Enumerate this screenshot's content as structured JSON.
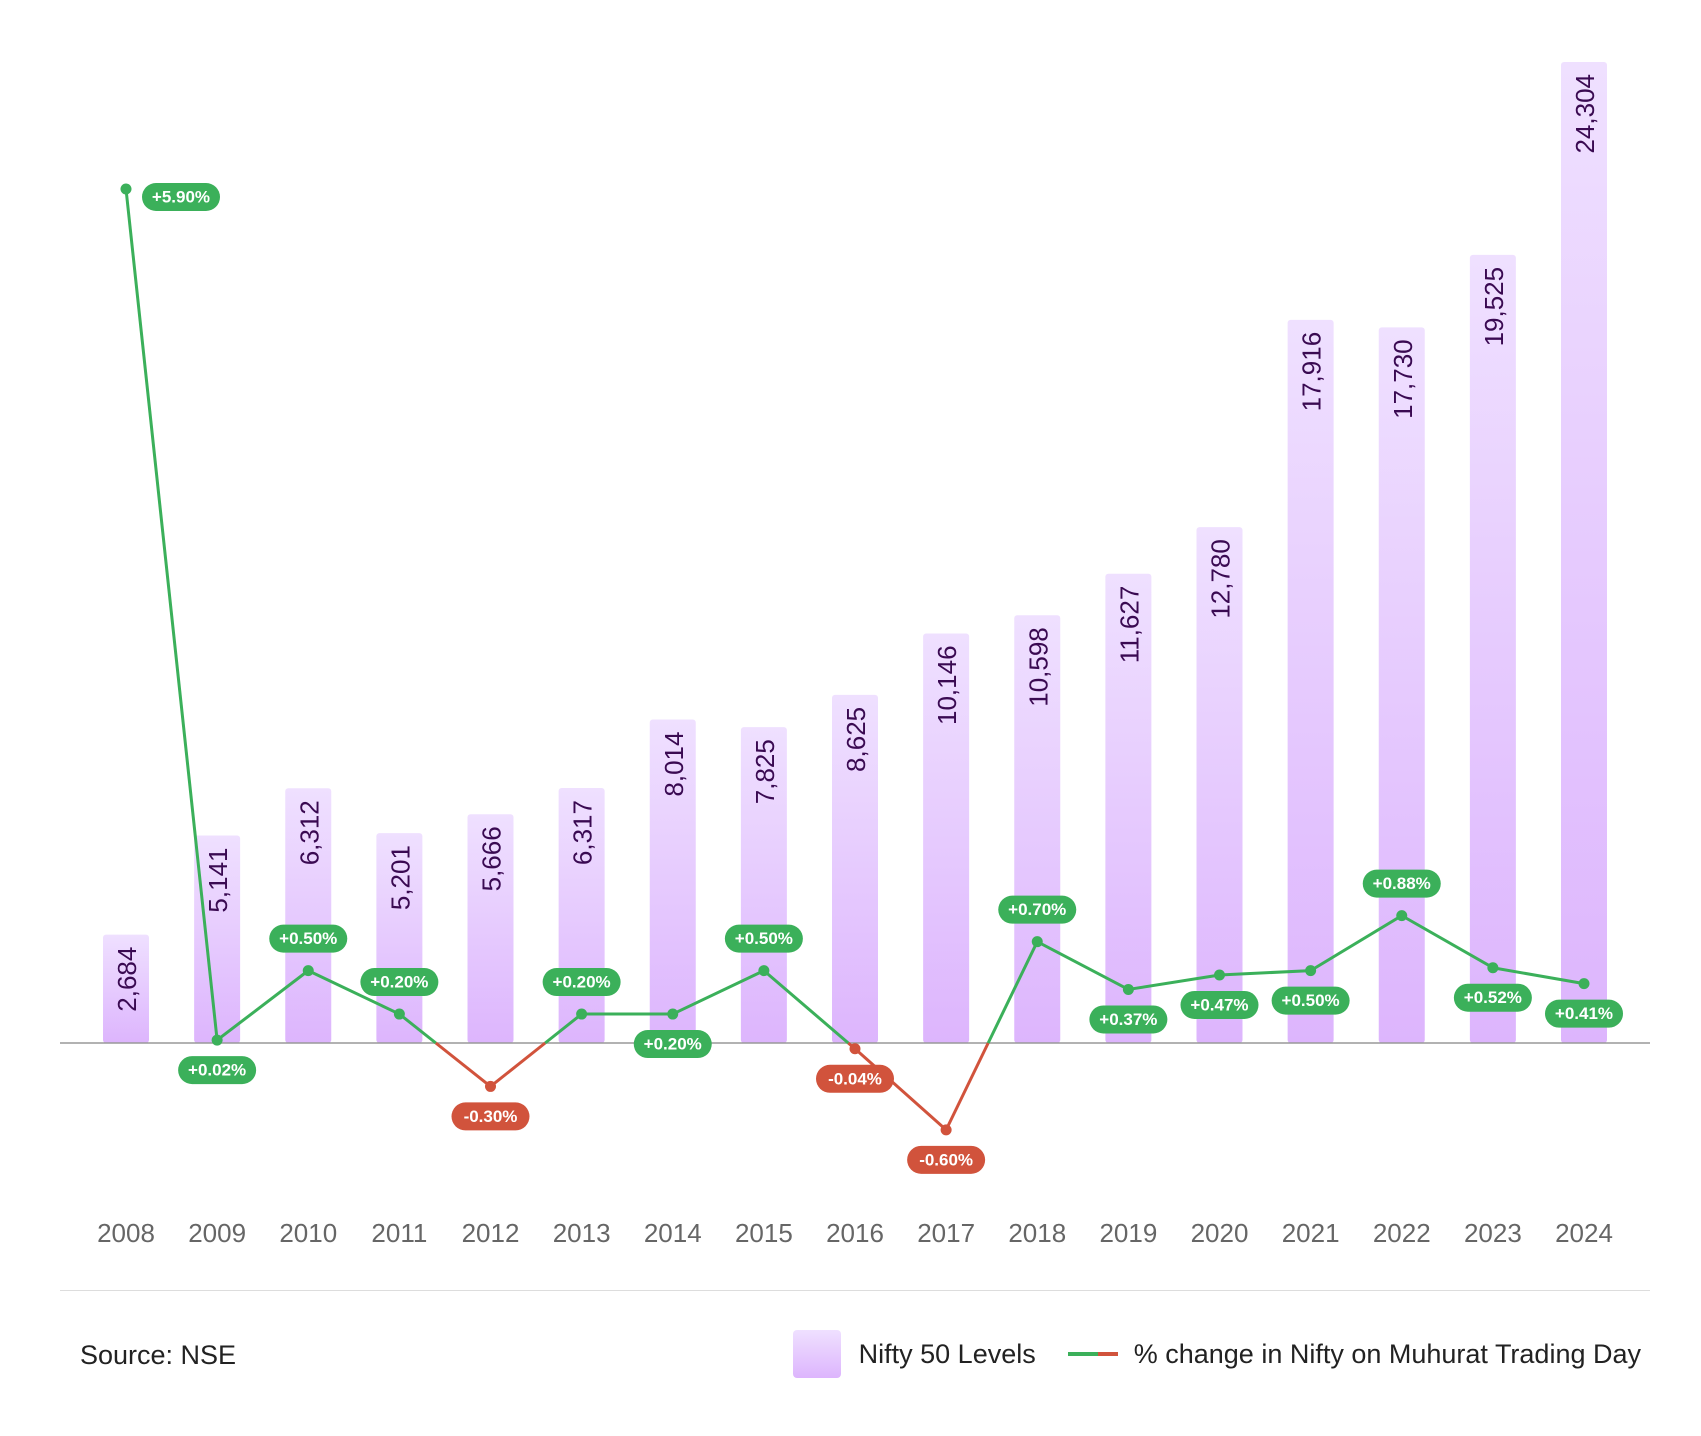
{
  "chart_data": {
    "type": "bar+line",
    "categories": [
      "2008",
      "2009",
      "2010",
      "2011",
      "2012",
      "2013",
      "2014",
      "2015",
      "2016",
      "2017",
      "2018",
      "2019",
      "2020",
      "2021",
      "2022",
      "2023",
      "2024"
    ],
    "series": [
      {
        "name": "Nifty 50 Levels",
        "type": "bar",
        "values": [
          2684,
          5141,
          6312,
          5201,
          5666,
          6317,
          8014,
          7825,
          8625,
          10146,
          10598,
          11627,
          12780,
          17916,
          17730,
          19525,
          24304
        ],
        "labels": [
          "2,684",
          "5,141",
          "6,312",
          "5,201",
          "5,666",
          "6,317",
          "8,014",
          "7,825",
          "8,625",
          "10,146",
          "10,598",
          "11,627",
          "12,780",
          "17,916",
          "17,730",
          "19,525",
          "24,304"
        ]
      },
      {
        "name": "% change in Nifty on Muhurat Trading Day",
        "type": "line",
        "values": [
          5.9,
          0.02,
          0.5,
          0.2,
          -0.3,
          0.2,
          0.2,
          0.5,
          -0.04,
          -0.6,
          0.7,
          0.37,
          0.47,
          0.5,
          0.88,
          0.52,
          0.41
        ],
        "labels": [
          "+5.90%",
          "+0.02%",
          "+0.50%",
          "+0.20%",
          "-0.30%",
          "+0.20%",
          "+0.20%",
          "+0.50%",
          "-0.04%",
          "-0.60%",
          "+0.70%",
          "+0.37%",
          "+0.47%",
          "+0.50%",
          "+0.88%",
          "+0.52%",
          "+0.41%"
        ]
      }
    ],
    "bar_ylim": [
      0,
      24304
    ],
    "line_ylim": [
      -1.1,
      5.9
    ],
    "colors": {
      "bar_top": "#efe0ff",
      "bar_bottom": "#ddb5fd",
      "bar_label": "#3a0a52",
      "positive": "#3bb05a",
      "negative": "#d1533c",
      "axis": "#999999",
      "tick_label": "#666666"
    }
  },
  "footer": {
    "source": "Source: NSE",
    "legend_bar_label": "Nifty 50 Levels",
    "legend_line_label": "% change in Nifty on Muhurat Trading Day"
  }
}
